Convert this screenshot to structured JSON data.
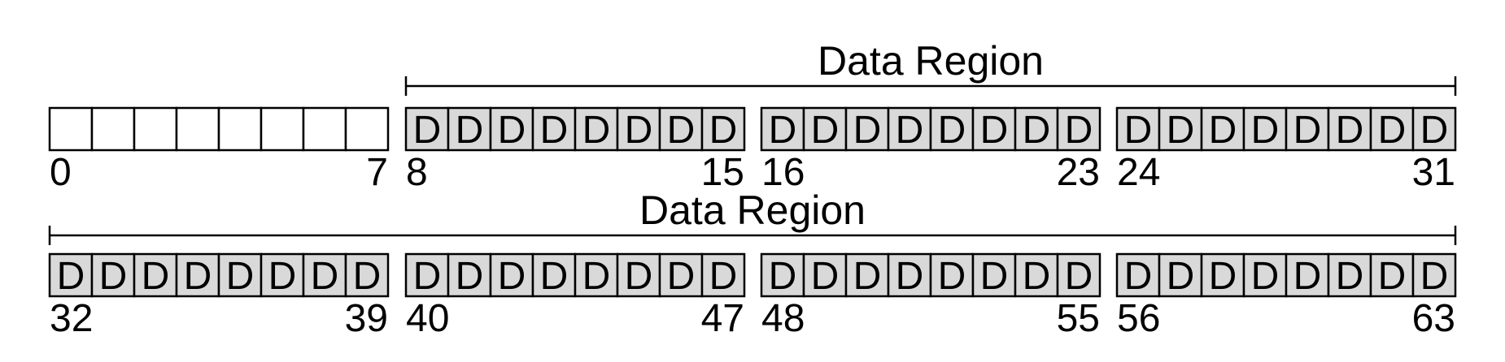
{
  "rows": [
    {
      "region_label": "Data Region",
      "region_spans_groups": [
        1,
        2,
        3
      ],
      "groups": [
        {
          "start_label": "0",
          "end_label": "7",
          "cells": [
            "",
            "",
            "",
            "",
            "",
            "",
            "",
            ""
          ],
          "filled": false
        },
        {
          "start_label": "8",
          "end_label": "15",
          "cells": [
            "D",
            "D",
            "D",
            "D",
            "D",
            "D",
            "D",
            "D"
          ],
          "filled": true
        },
        {
          "start_label": "16",
          "end_label": "23",
          "cells": [
            "D",
            "D",
            "D",
            "D",
            "D",
            "D",
            "D",
            "D"
          ],
          "filled": true
        },
        {
          "start_label": "24",
          "end_label": "31",
          "cells": [
            "D",
            "D",
            "D",
            "D",
            "D",
            "D",
            "D",
            "D"
          ],
          "filled": true
        }
      ]
    },
    {
      "region_label": "Data Region",
      "region_spans_groups": [
        0,
        1,
        2,
        3
      ],
      "groups": [
        {
          "start_label": "32",
          "end_label": "39",
          "cells": [
            "D",
            "D",
            "D",
            "D",
            "D",
            "D",
            "D",
            "D"
          ],
          "filled": true
        },
        {
          "start_label": "40",
          "end_label": "47",
          "cells": [
            "D",
            "D",
            "D",
            "D",
            "D",
            "D",
            "D",
            "D"
          ],
          "filled": true
        },
        {
          "start_label": "48",
          "end_label": "55",
          "cells": [
            "D",
            "D",
            "D",
            "D",
            "D",
            "D",
            "D",
            "D"
          ],
          "filled": true
        },
        {
          "start_label": "56",
          "end_label": "63",
          "cells": [
            "D",
            "D",
            "D",
            "D",
            "D",
            "D",
            "D",
            "D"
          ],
          "filled": true
        }
      ]
    }
  ],
  "colors": {
    "filled_cell": "#d9d9d9",
    "empty_cell": "#ffffff",
    "stroke": "#000000"
  }
}
